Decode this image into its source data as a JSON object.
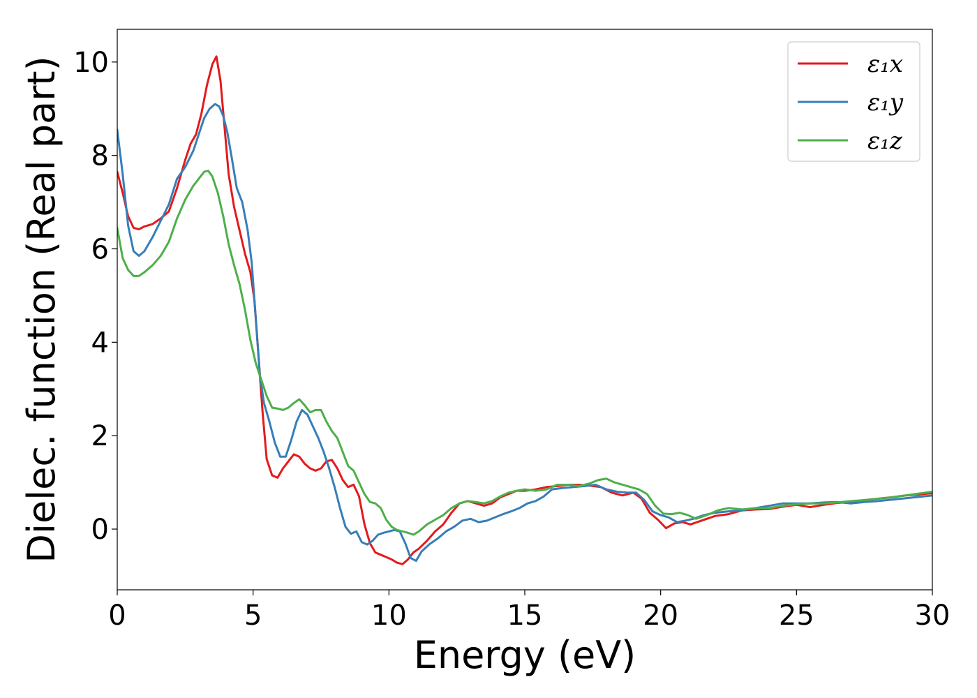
{
  "chart_data": {
    "type": "line",
    "title": "",
    "xlabel": "Energy (eV)",
    "ylabel": "Dielec. function (Real part)",
    "xlim": [
      0,
      30
    ],
    "ylim": [
      -1.3,
      10.7
    ],
    "xticks": [
      0,
      5,
      10,
      15,
      20,
      25,
      30
    ],
    "yticks": [
      0,
      2,
      4,
      6,
      8,
      10
    ],
    "grid": false,
    "legend_position": "top-right",
    "series": [
      {
        "name": "ε₁x",
        "color": "#e41a1c",
        "x": [
          0,
          0.2,
          0.4,
          0.6,
          0.8,
          1.0,
          1.3,
          1.6,
          1.9,
          2.2,
          2.5,
          2.7,
          2.9,
          3.1,
          3.3,
          3.5,
          3.65,
          3.8,
          3.95,
          4.1,
          4.3,
          4.5,
          4.7,
          4.9,
          5.05,
          5.2,
          5.35,
          5.5,
          5.7,
          5.9,
          6.1,
          6.3,
          6.5,
          6.7,
          6.9,
          7.1,
          7.3,
          7.5,
          7.7,
          7.9,
          8.1,
          8.3,
          8.5,
          8.7,
          8.9,
          9.1,
          9.3,
          9.5,
          9.7,
          9.9,
          10.1,
          10.3,
          10.5,
          10.7,
          10.9,
          11.1,
          11.4,
          11.7,
          12.0,
          12.3,
          12.6,
          12.9,
          13.2,
          13.5,
          13.8,
          14.1,
          14.4,
          14.7,
          15.0,
          15.4,
          15.8,
          16.2,
          16.6,
          17.0,
          17.4,
          17.8,
          18.2,
          18.6,
          19.0,
          19.3,
          19.6,
          19.9,
          20.2,
          20.5,
          20.8,
          21.1,
          21.5,
          22.0,
          22.5,
          23.0,
          23.5,
          24.0,
          24.5,
          25.0,
          25.5,
          26.0,
          26.5,
          27.0,
          27.5,
          28.0,
          28.5,
          29.0,
          29.5,
          30.0
        ],
        "y": [
          7.65,
          7.2,
          6.7,
          6.45,
          6.42,
          6.48,
          6.53,
          6.65,
          6.8,
          7.3,
          7.9,
          8.25,
          8.45,
          8.9,
          9.5,
          9.95,
          10.12,
          9.6,
          8.6,
          7.6,
          6.9,
          6.4,
          5.9,
          5.5,
          4.9,
          3.7,
          2.5,
          1.5,
          1.15,
          1.1,
          1.3,
          1.45,
          1.6,
          1.55,
          1.4,
          1.3,
          1.25,
          1.3,
          1.45,
          1.48,
          1.3,
          1.05,
          0.9,
          0.95,
          0.7,
          0.1,
          -0.3,
          -0.5,
          -0.55,
          -0.6,
          -0.65,
          -0.72,
          -0.75,
          -0.65,
          -0.5,
          -0.42,
          -0.25,
          -0.05,
          0.1,
          0.35,
          0.55,
          0.6,
          0.55,
          0.5,
          0.55,
          0.68,
          0.75,
          0.82,
          0.82,
          0.85,
          0.9,
          0.92,
          0.95,
          0.95,
          0.93,
          0.9,
          0.78,
          0.72,
          0.78,
          0.65,
          0.35,
          0.2,
          0.02,
          0.12,
          0.15,
          0.1,
          0.18,
          0.28,
          0.32,
          0.4,
          0.42,
          0.43,
          0.48,
          0.52,
          0.47,
          0.52,
          0.56,
          0.58,
          0.62,
          0.65,
          0.68,
          0.72,
          0.74,
          0.77
        ]
      },
      {
        "name": "ε₁y",
        "color": "#377eb8",
        "x": [
          0,
          0.2,
          0.4,
          0.6,
          0.8,
          1.0,
          1.3,
          1.6,
          1.9,
          2.2,
          2.5,
          2.8,
          3.0,
          3.2,
          3.4,
          3.6,
          3.75,
          3.9,
          4.05,
          4.2,
          4.4,
          4.6,
          4.8,
          4.95,
          5.1,
          5.25,
          5.4,
          5.6,
          5.8,
          6.0,
          6.2,
          6.4,
          6.6,
          6.8,
          7.0,
          7.2,
          7.4,
          7.6,
          7.8,
          8.0,
          8.2,
          8.4,
          8.6,
          8.8,
          9.0,
          9.2,
          9.4,
          9.6,
          9.8,
          10.0,
          10.2,
          10.4,
          10.6,
          10.8,
          11.0,
          11.2,
          11.5,
          11.8,
          12.1,
          12.4,
          12.7,
          13.0,
          13.3,
          13.6,
          13.9,
          14.2,
          14.5,
          14.8,
          15.1,
          15.4,
          15.7,
          16.0,
          16.4,
          16.8,
          17.2,
          17.6,
          18.0,
          18.4,
          18.8,
          19.1,
          19.4,
          19.7,
          20.0,
          20.3,
          20.6,
          20.9,
          21.2,
          21.6,
          22.0,
          22.5,
          23.0,
          23.5,
          24.0,
          24.5,
          25.0,
          25.5,
          26.0,
          26.5,
          27.0,
          27.5,
          28.0,
          28.5,
          29.0,
          29.5,
          30.0
        ],
        "y": [
          8.55,
          7.6,
          6.5,
          5.95,
          5.85,
          5.95,
          6.25,
          6.6,
          6.95,
          7.5,
          7.75,
          8.1,
          8.45,
          8.8,
          9.0,
          9.1,
          9.05,
          8.85,
          8.5,
          8.0,
          7.3,
          7.0,
          6.4,
          5.7,
          4.5,
          3.3,
          2.7,
          2.3,
          1.85,
          1.55,
          1.55,
          1.9,
          2.3,
          2.55,
          2.45,
          2.2,
          1.95,
          1.65,
          1.3,
          0.9,
          0.45,
          0.05,
          -0.1,
          -0.05,
          -0.28,
          -0.33,
          -0.25,
          -0.12,
          -0.08,
          -0.05,
          -0.02,
          -0.05,
          -0.3,
          -0.62,
          -0.68,
          -0.48,
          -0.32,
          -0.2,
          -0.05,
          0.05,
          0.18,
          0.22,
          0.15,
          0.18,
          0.25,
          0.32,
          0.38,
          0.45,
          0.55,
          0.6,
          0.7,
          0.85,
          0.88,
          0.9,
          0.92,
          0.95,
          0.85,
          0.8,
          0.78,
          0.78,
          0.62,
          0.38,
          0.3,
          0.25,
          0.15,
          0.18,
          0.22,
          0.3,
          0.35,
          0.38,
          0.4,
          0.45,
          0.5,
          0.55,
          0.55,
          0.55,
          0.57,
          0.58,
          0.55,
          0.58,
          0.6,
          0.63,
          0.66,
          0.69,
          0.72
        ]
      },
      {
        "name": "ε₁z",
        "color": "#4daf4a",
        "x": [
          0,
          0.2,
          0.4,
          0.6,
          0.8,
          1.0,
          1.3,
          1.6,
          1.9,
          2.2,
          2.5,
          2.8,
          3.0,
          3.2,
          3.35,
          3.5,
          3.7,
          3.9,
          4.1,
          4.3,
          4.5,
          4.7,
          4.9,
          5.1,
          5.3,
          5.5,
          5.7,
          5.9,
          6.1,
          6.3,
          6.5,
          6.7,
          6.9,
          7.1,
          7.3,
          7.5,
          7.7,
          7.9,
          8.1,
          8.3,
          8.5,
          8.7,
          8.9,
          9.1,
          9.3,
          9.5,
          9.7,
          9.9,
          10.1,
          10.3,
          10.5,
          10.7,
          10.9,
          11.1,
          11.4,
          11.7,
          12.0,
          12.3,
          12.6,
          12.9,
          13.2,
          13.5,
          13.8,
          14.1,
          14.4,
          14.7,
          15.0,
          15.4,
          15.8,
          16.2,
          16.6,
          17.0,
          17.4,
          17.7,
          18.0,
          18.3,
          18.6,
          18.9,
          19.2,
          19.5,
          19.8,
          20.1,
          20.4,
          20.7,
          21.0,
          21.3,
          21.7,
          22.1,
          22.5,
          23.0,
          23.5,
          24.0,
          24.5,
          25.0,
          25.5,
          26.0,
          26.5,
          27.0,
          27.5,
          28.0,
          28.5,
          29.0,
          29.5,
          30.0
        ],
        "y": [
          6.45,
          5.8,
          5.55,
          5.42,
          5.42,
          5.5,
          5.65,
          5.85,
          6.15,
          6.65,
          7.05,
          7.35,
          7.5,
          7.65,
          7.67,
          7.55,
          7.2,
          6.7,
          6.1,
          5.65,
          5.25,
          4.7,
          4.05,
          3.55,
          3.2,
          2.85,
          2.6,
          2.58,
          2.55,
          2.6,
          2.7,
          2.78,
          2.65,
          2.5,
          2.55,
          2.55,
          2.3,
          2.1,
          1.95,
          1.65,
          1.35,
          1.25,
          1.0,
          0.75,
          0.58,
          0.55,
          0.45,
          0.2,
          0.05,
          -0.02,
          -0.05,
          -0.08,
          -0.12,
          -0.05,
          0.1,
          0.2,
          0.3,
          0.45,
          0.55,
          0.6,
          0.58,
          0.55,
          0.6,
          0.7,
          0.78,
          0.82,
          0.85,
          0.82,
          0.85,
          0.95,
          0.95,
          0.92,
          0.98,
          1.05,
          1.08,
          1.0,
          0.95,
          0.9,
          0.85,
          0.75,
          0.5,
          0.33,
          0.32,
          0.35,
          0.3,
          0.22,
          0.3,
          0.4,
          0.45,
          0.42,
          0.45,
          0.45,
          0.5,
          0.53,
          0.55,
          0.55,
          0.57,
          0.6,
          0.62,
          0.65,
          0.68,
          0.72,
          0.76,
          0.8
        ]
      }
    ]
  }
}
